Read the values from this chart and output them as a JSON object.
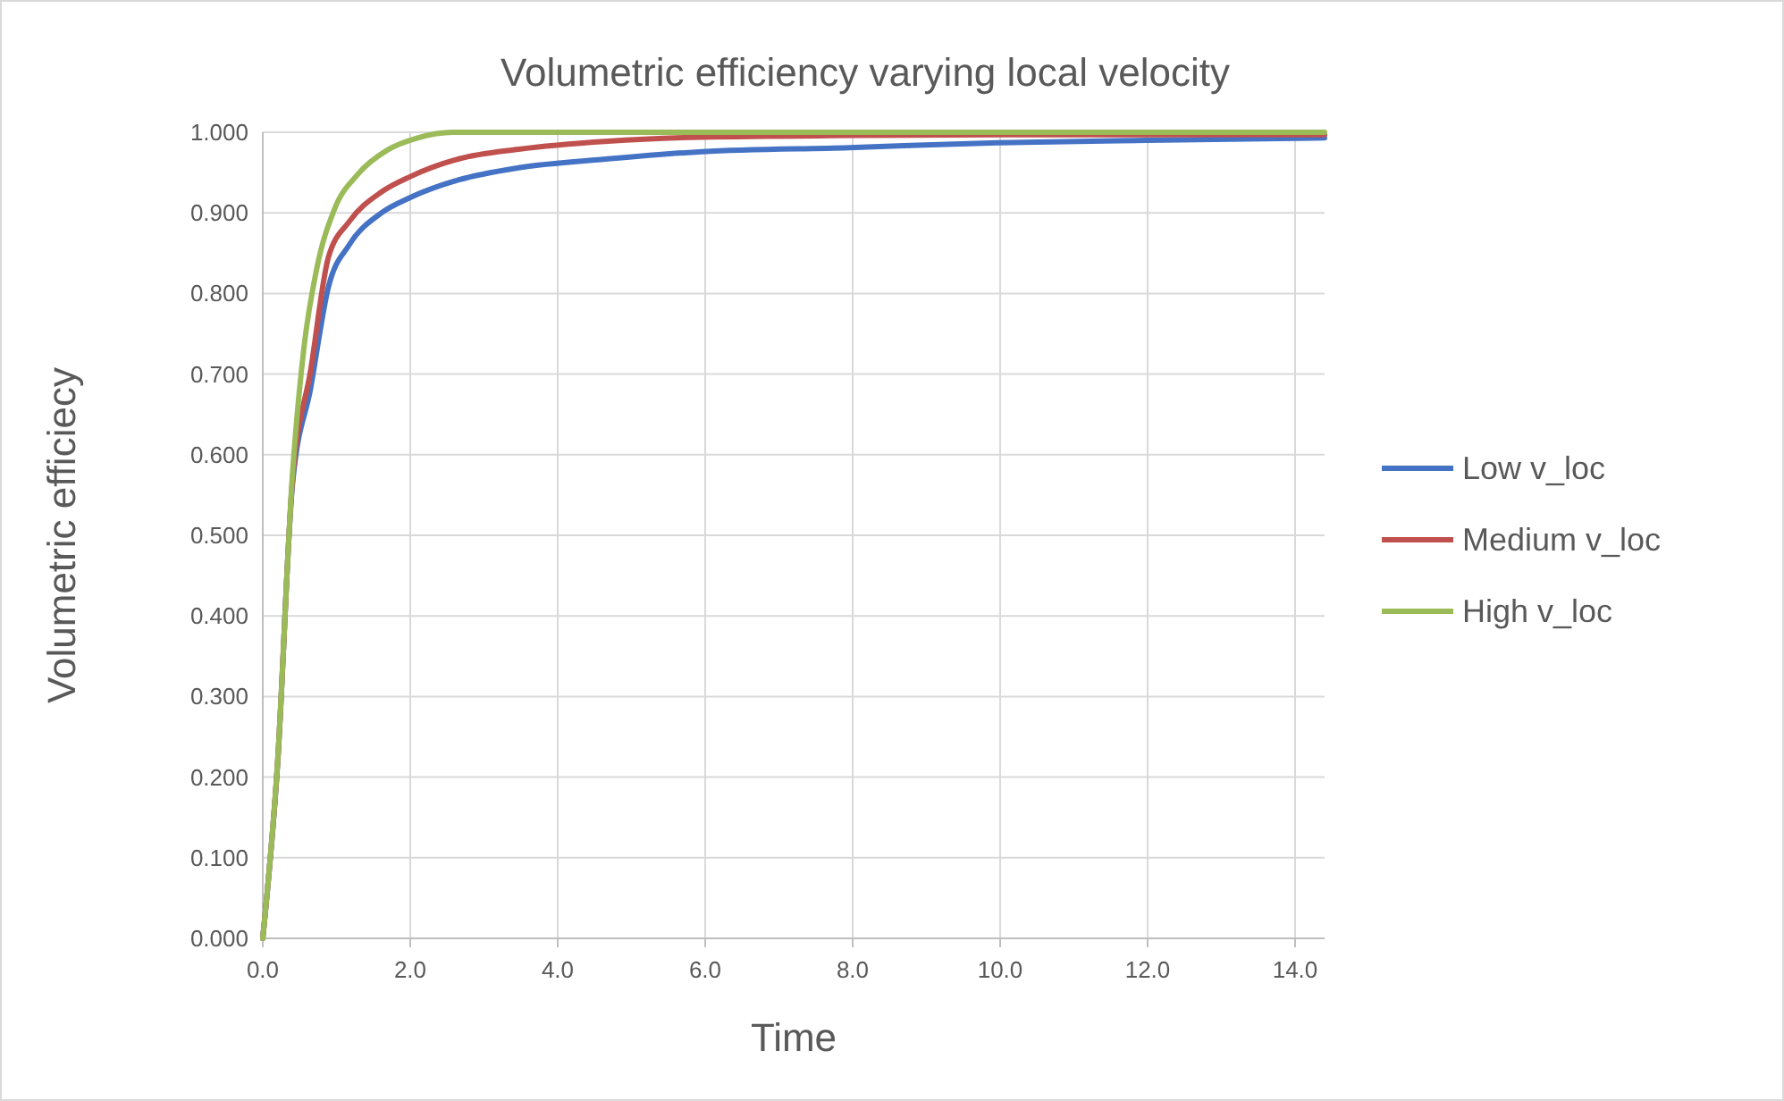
{
  "chart_data": {
    "type": "line",
    "title": "Volumetric efficiency varying local velocity",
    "xlabel": "Time",
    "ylabel": "Volumetric efficiecy",
    "xlim": [
      0,
      14.4
    ],
    "ylim": [
      0,
      1
    ],
    "xticks": [
      {
        "value": 0,
        "label": "0.0"
      },
      {
        "value": 2,
        "label": "2.0"
      },
      {
        "value": 4,
        "label": "4.0"
      },
      {
        "value": 6,
        "label": "6.0"
      },
      {
        "value": 8,
        "label": "8.0"
      },
      {
        "value": 10,
        "label": "10.0"
      },
      {
        "value": 12,
        "label": "12.0"
      },
      {
        "value": 14,
        "label": "14.0"
      }
    ],
    "yticks": [
      {
        "value": 0,
        "label": "0.000"
      },
      {
        "value": 0.1,
        "label": "0.100"
      },
      {
        "value": 0.2,
        "label": "0.200"
      },
      {
        "value": 0.3,
        "label": "0.300"
      },
      {
        "value": 0.4,
        "label": "0.400"
      },
      {
        "value": 0.5,
        "label": "0.500"
      },
      {
        "value": 0.6,
        "label": "0.600"
      },
      {
        "value": 0.7,
        "label": "0.700"
      },
      {
        "value": 0.8,
        "label": "0.800"
      },
      {
        "value": 0.9,
        "label": "0.900"
      },
      {
        "value": 1,
        "label": "1.000"
      }
    ],
    "grid": true,
    "legend": "right",
    "marker": "none",
    "line_style": "solid",
    "series": [
      {
        "name": "Low v_loc",
        "color": "#4472c4",
        "x": [
          0,
          0.2,
          0.4,
          0.65,
          0.89,
          1.17,
          1.61,
          2.0,
          2.66,
          3.47,
          4.68,
          5.96,
          7.95,
          9.97,
          11.98,
          14.4
        ],
        "values": [
          0,
          0.215,
          0.56,
          0.683,
          0.808,
          0.86,
          0.9,
          0.919,
          0.941,
          0.956,
          0.967,
          0.976,
          0.981,
          0.987,
          0.99,
          0.993
        ]
      },
      {
        "name": "Medium v_loc",
        "color": "#c0504d",
        "x": [
          0,
          0.2,
          0.4,
          0.65,
          0.89,
          1.17,
          1.61,
          2.0,
          2.66,
          3.47,
          4.68,
          5.96,
          8,
          10,
          12,
          14.4
        ],
        "values": [
          0,
          0.216,
          0.565,
          0.705,
          0.845,
          0.889,
          0.926,
          0.945,
          0.967,
          0.979,
          0.989,
          0.994,
          0.996,
          0.997,
          0.997,
          0.997
        ]
      },
      {
        "name": "High v_loc",
        "color": "#9bbb59",
        "x": [
          0,
          0.2,
          0.4,
          0.56,
          0.73,
          0.97,
          1.29,
          1.69,
          2.1,
          2.58,
          4,
          6,
          8,
          10,
          12,
          14.4
        ],
        "values": [
          0,
          0.218,
          0.572,
          0.734,
          0.83,
          0.904,
          0.948,
          0.978,
          0.993,
          1.0,
          1.0,
          1.0,
          1.0,
          1.0,
          1.0,
          1.0
        ]
      }
    ]
  }
}
